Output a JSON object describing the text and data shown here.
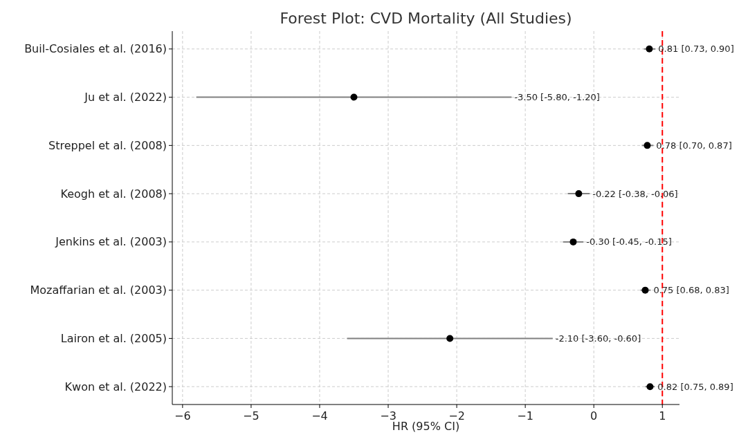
{
  "chart_data": {
    "type": "scatter",
    "orientation": "horizontal",
    "title": "Forest Plot: CVD Mortality (All Studies)",
    "xlabel": "HR (95% CI)",
    "categories": [
      "Buil-Cosiales et al. (2016)",
      "Ju et al. (2022)",
      "Streppel et al. (2008)",
      "Keogh et al. (2008)",
      "Jenkins et al. (2003)",
      "Mozaffarian et al. (2003)",
      "Lairon et al. (2005)",
      "Kwon et al. (2022)"
    ],
    "values": [
      0.81,
      -3.5,
      0.78,
      -0.22,
      -0.3,
      0.75,
      -2.1,
      0.82
    ],
    "errors": [
      [
        0.73,
        0.9
      ],
      [
        -5.8,
        -1.2
      ],
      [
        0.7,
        0.87
      ],
      [
        -0.38,
        -0.06
      ],
      [
        -0.45,
        -0.15
      ],
      [
        0.68,
        0.83
      ],
      [
        -3.6,
        -0.6
      ],
      [
        0.75,
        0.89
      ]
    ],
    "annotations": [
      {
        "text": "0.81 [0.73, 0.90]",
        "x": 0.9,
        "y": "Buil-Cosiales et al. (2016)"
      },
      {
        "text": "-3.50 [-5.80, -1.20]",
        "x": -1.2,
        "y": "Ju et al. (2022)"
      },
      {
        "text": "0.78 [0.70, 0.87]",
        "x": 0.87,
        "y": "Streppel et al. (2008)"
      },
      {
        "text": "-0.22 [-0.38, -0.06]",
        "x": -0.06,
        "y": "Keogh et al. (2008)"
      },
      {
        "text": "-0.30 [-0.45, -0.15]",
        "x": -0.15,
        "y": "Jenkins et al. (2003)"
      },
      {
        "text": "0.75 [0.68, 0.83]",
        "x": 0.83,
        "y": "Mozaffarian et al. (2003)"
      },
      {
        "text": "-2.10 [-3.60, -0.60]",
        "x": -0.6,
        "y": "Lairon et al. (2005)"
      },
      {
        "text": "0.82 [0.75, 0.89]",
        "x": 0.89,
        "y": "Kwon et al. (2022)"
      }
    ],
    "color": "#000000",
    "marker": "circle",
    "grid": true,
    "xlim": [
      -6.15,
      1.25
    ],
    "xticks": [
      {
        "value": -6,
        "label": "−6"
      },
      {
        "value": -5,
        "label": "−5"
      },
      {
        "value": -4,
        "label": "−4"
      },
      {
        "value": -3,
        "label": "−3"
      },
      {
        "value": -2,
        "label": "−2"
      },
      {
        "value": -1,
        "label": "−1"
      },
      0,
      1
    ],
    "ref_lines": [
      {
        "axis": "x",
        "value": 1,
        "color": "#ff0000",
        "line_style": "dashed"
      }
    ]
  }
}
